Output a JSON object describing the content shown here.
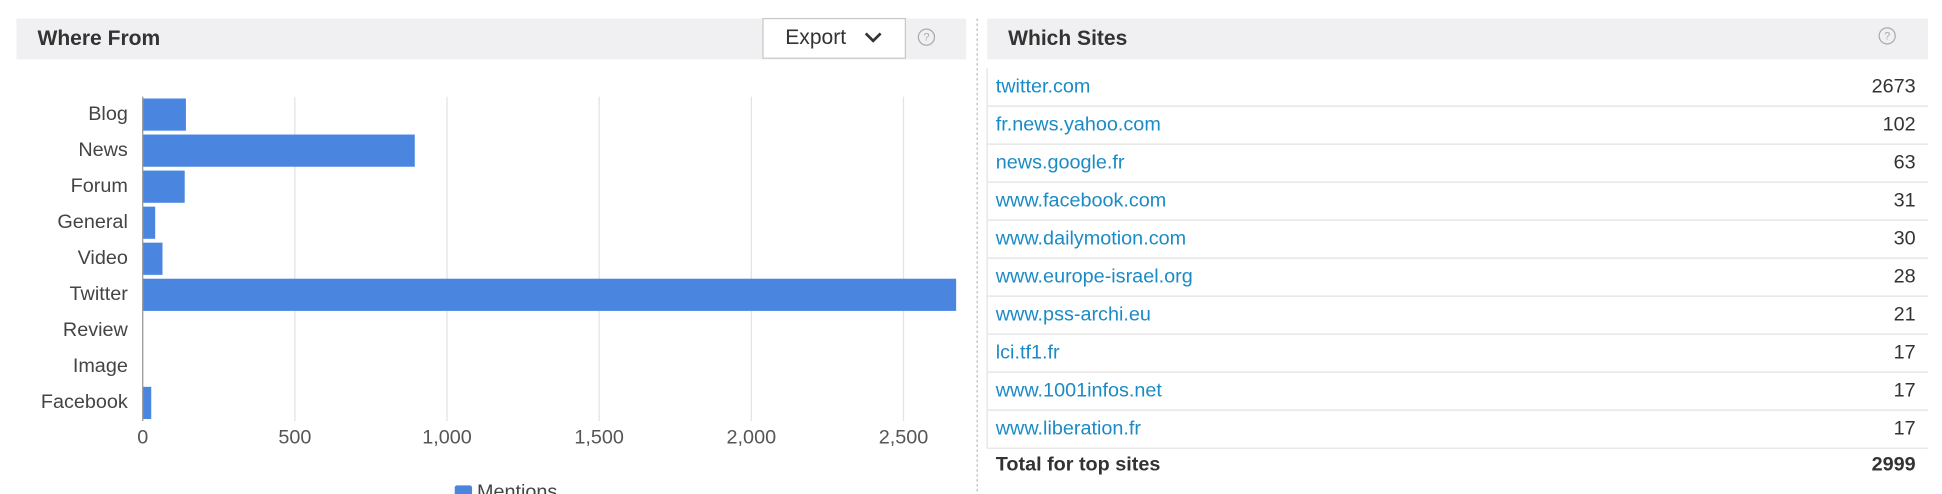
{
  "chart_data": {
    "type": "bar",
    "orientation": "horizontal",
    "title": "Where From",
    "categories": [
      "Blog",
      "News",
      "Forum",
      "General",
      "Video",
      "Twitter",
      "Review",
      "Image",
      "Facebook"
    ],
    "series": [
      {
        "name": "Mentions",
        "color": "#4a86e0",
        "values": [
          142,
          894,
          138,
          41,
          65,
          2673,
          0,
          0,
          28
        ]
      }
    ],
    "xlim": [
      0,
      2673
    ],
    "xticks": [
      0,
      500,
      {
        "value": 1000,
        "label": "1,000"
      },
      {
        "value": 1500,
        "label": "1,500"
      },
      {
        "value": 2000,
        "label": "2,000"
      },
      {
        "value": 2500,
        "label": "2,500"
      }
    ],
    "grid": true
  },
  "export_button": "Export",
  "sites_table": {
    "title": "Which Sites",
    "rows": [
      [
        "twitter.com",
        2673
      ],
      [
        "fr.news.yahoo.com",
        102
      ],
      [
        "news.google.fr",
        63
      ],
      [
        "www.facebook.com",
        31
      ],
      [
        "www.dailymotion.com",
        30
      ],
      [
        "www.europe-israel.org",
        28
      ],
      [
        "www.pss-archi.eu",
        21
      ],
      [
        "lci.tf1.fr",
        17
      ],
      [
        "www.1001infos.net",
        17
      ],
      [
        "www.liberation.fr",
        17
      ]
    ],
    "total": [
      "Total for top sites",
      2999
    ]
  }
}
